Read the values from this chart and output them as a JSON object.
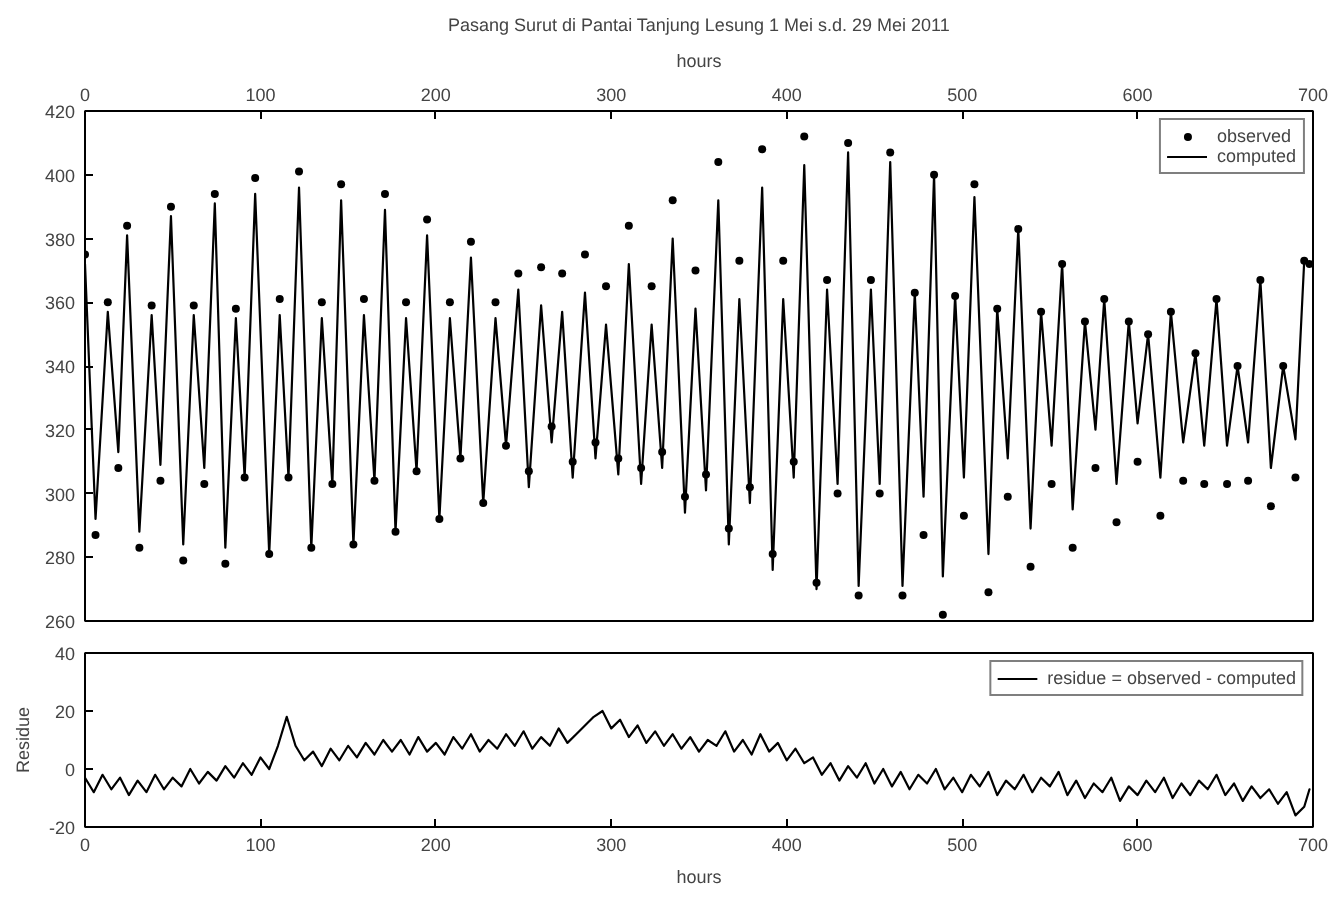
{
  "chart_data": [
    {
      "type": "line",
      "title": "Pasang Surut di Pantai Tanjung Lesung 1 Mei s.d. 29 Mei 2011",
      "xlabel": "hours",
      "xlim": [
        0,
        700
      ],
      "xticks": [
        0,
        100,
        200,
        300,
        400,
        500,
        600,
        700
      ],
      "ylim": [
        260,
        420
      ],
      "yticks": [
        260,
        280,
        300,
        320,
        340,
        360,
        380,
        400,
        420
      ],
      "grid": false,
      "legend": "top right",
      "series": [
        {
          "name": "observed",
          "type": "scatter",
          "marker": "circle",
          "color": "#000000",
          "x": [
            0,
            6,
            13,
            19,
            24,
            31,
            38,
            43,
            49,
            56,
            62,
            68,
            74,
            80,
            86,
            91,
            97,
            105,
            111,
            116,
            122,
            129,
            135,
            141,
            146,
            153,
            159,
            165,
            171,
            177,
            183,
            189,
            195,
            202,
            208,
            214,
            220,
            227,
            234,
            240,
            247,
            253,
            260,
            266,
            272,
            278,
            285,
            291,
            297,
            304,
            310,
            317,
            323,
            329,
            335,
            342,
            348,
            354,
            361,
            367,
            373,
            379,
            386,
            392,
            398,
            404,
            410,
            417,
            423,
            429,
            435,
            441,
            448,
            453,
            459,
            466,
            473,
            478,
            484,
            489,
            496,
            501,
            507,
            515,
            520,
            526,
            532,
            539,
            545,
            551,
            557,
            563,
            570,
            576,
            581,
            588,
            595,
            600,
            606,
            613,
            619,
            626,
            633,
            638,
            645,
            651,
            657,
            663,
            670,
            676,
            683,
            690,
            695,
            698
          ],
          "values": [
            375,
            287,
            360,
            308,
            384,
            283,
            359,
            304,
            390,
            279,
            359,
            303,
            394,
            278,
            358,
            305,
            399,
            281,
            361,
            305,
            401,
            283,
            360,
            303,
            397,
            284,
            361,
            304,
            394,
            288,
            360,
            307,
            386,
            292,
            360,
            311,
            379,
            297,
            360,
            315,
            369,
            307,
            371,
            321,
            369,
            310,
            375,
            316,
            365,
            311,
            384,
            308,
            365,
            313,
            392,
            299,
            370,
            306,
            404,
            289,
            373,
            302,
            408,
            281,
            373,
            310,
            412,
            272,
            367,
            300,
            410,
            268,
            367,
            300,
            407,
            268,
            363,
            287,
            400,
            262,
            362,
            293,
            397,
            269,
            358,
            299,
            383,
            277,
            357,
            303,
            372,
            283,
            354,
            308,
            361,
            291,
            354,
            310,
            350,
            293,
            357,
            304,
            344,
            303,
            361,
            303,
            340,
            304,
            367,
            296,
            340,
            305,
            373,
            372
          ]
        },
        {
          "name": "computed",
          "line_style": "solid",
          "color": "#000000",
          "x": [
            0,
            6,
            13,
            19,
            24,
            31,
            38,
            43,
            49,
            56,
            62,
            68,
            74,
            80,
            86,
            91,
            97,
            105,
            111,
            116,
            122,
            129,
            135,
            141,
            146,
            153,
            159,
            165,
            171,
            177,
            183,
            189,
            195,
            202,
            208,
            214,
            220,
            227,
            234,
            240,
            247,
            253,
            260,
            266,
            272,
            278,
            285,
            291,
            297,
            304,
            310,
            317,
            323,
            329,
            335,
            342,
            348,
            354,
            361,
            367,
            373,
            379,
            386,
            392,
            398,
            404,
            410,
            417,
            423,
            429,
            435,
            441,
            448,
            453,
            459,
            466,
            473,
            478,
            484,
            489,
            496,
            501,
            507,
            515,
            520,
            526,
            532,
            539,
            545,
            551,
            557,
            563,
            570,
            576,
            581,
            588,
            595,
            600,
            606,
            613,
            619,
            626,
            633,
            638,
            645,
            651,
            657,
            663,
            670,
            676,
            683,
            690,
            695,
            698
          ],
          "values": [
            372,
            292,
            357,
            313,
            381,
            288,
            356,
            309,
            387,
            284,
            356,
            308,
            391,
            283,
            355,
            305,
            394,
            281,
            356,
            305,
            396,
            283,
            355,
            303,
            392,
            284,
            356,
            304,
            389,
            288,
            355,
            307,
            381,
            292,
            355,
            311,
            374,
            297,
            355,
            315,
            364,
            302,
            359,
            316,
            357,
            305,
            363,
            311,
            353,
            306,
            372,
            303,
            353,
            308,
            380,
            294,
            358,
            301,
            392,
            284,
            361,
            297,
            396,
            276,
            361,
            305,
            403,
            270,
            364,
            303,
            407,
            271,
            364,
            303,
            404,
            271,
            363,
            299,
            400,
            274,
            362,
            305,
            393,
            281,
            358,
            311,
            383,
            289,
            357,
            315,
            372,
            295,
            354,
            320,
            361,
            303,
            354,
            322,
            350,
            305,
            357,
            316,
            344,
            315,
            361,
            315,
            340,
            316,
            367,
            308,
            340,
            317,
            373,
            372
          ]
        }
      ]
    },
    {
      "type": "line",
      "xlabel": "hours",
      "ylabel": "Residue",
      "xlim": [
        0,
        700
      ],
      "xticks": [
        0,
        100,
        200,
        300,
        400,
        500,
        600,
        700
      ],
      "ylim": [
        -20,
        40
      ],
      "yticks": [
        -20,
        0,
        20,
        40
      ],
      "grid": false,
      "legend": "top right",
      "series": [
        {
          "name": "residue = observed - computed",
          "line_style": "solid",
          "color": "#000000",
          "x": [
            0,
            5,
            10,
            15,
            20,
            25,
            30,
            35,
            40,
            45,
            50,
            55,
            60,
            65,
            70,
            75,
            80,
            85,
            90,
            95,
            100,
            105,
            110,
            115,
            120,
            125,
            130,
            135,
            140,
            145,
            150,
            155,
            160,
            165,
            170,
            175,
            180,
            185,
            190,
            195,
            200,
            205,
            210,
            215,
            220,
            225,
            230,
            235,
            240,
            245,
            250,
            255,
            260,
            265,
            270,
            275,
            280,
            285,
            290,
            295,
            300,
            305,
            310,
            315,
            320,
            325,
            330,
            335,
            340,
            345,
            350,
            355,
            360,
            365,
            370,
            375,
            380,
            385,
            390,
            395,
            400,
            405,
            410,
            415,
            420,
            425,
            430,
            435,
            440,
            445,
            450,
            455,
            460,
            465,
            470,
            475,
            480,
            485,
            490,
            495,
            500,
            505,
            510,
            515,
            520,
            525,
            530,
            535,
            540,
            545,
            550,
            555,
            560,
            565,
            570,
            575,
            580,
            585,
            590,
            595,
            600,
            605,
            610,
            615,
            620,
            625,
            630,
            635,
            640,
            645,
            650,
            655,
            660,
            665,
            670,
            675,
            680,
            685,
            690,
            695,
            698
          ],
          "values": [
            -3,
            -8,
            -2,
            -7,
            -3,
            -9,
            -4,
            -8,
            -2,
            -7,
            -3,
            -6,
            0,
            -5,
            -1,
            -4,
            1,
            -3,
            2,
            -2,
            4,
            0,
            8,
            18,
            8,
            3,
            6,
            1,
            7,
            3,
            8,
            4,
            9,
            5,
            10,
            6,
            10,
            5,
            11,
            6,
            9,
            5,
            11,
            7,
            12,
            6,
            10,
            7,
            12,
            8,
            13,
            7,
            11,
            8,
            14,
            9,
            12,
            15,
            18,
            20,
            14,
            17,
            11,
            15,
            9,
            13,
            8,
            12,
            7,
            11,
            6,
            10,
            8,
            13,
            6,
            10,
            5,
            12,
            6,
            9,
            3,
            7,
            2,
            4,
            -2,
            2,
            -4,
            1,
            -3,
            2,
            -5,
            0,
            -6,
            -1,
            -7,
            -2,
            -5,
            0,
            -7,
            -3,
            -8,
            -2,
            -6,
            -1,
            -9,
            -4,
            -7,
            -2,
            -8,
            -3,
            -6,
            -1,
            -9,
            -4,
            -10,
            -5,
            -8,
            -3,
            -11,
            -6,
            -9,
            -4,
            -8,
            -3,
            -10,
            -5,
            -9,
            -4,
            -7,
            -2,
            -9,
            -5,
            -11,
            -6,
            -10,
            -7,
            -12,
            -8,
            -16,
            -13,
            -7
          ]
        }
      ]
    }
  ]
}
